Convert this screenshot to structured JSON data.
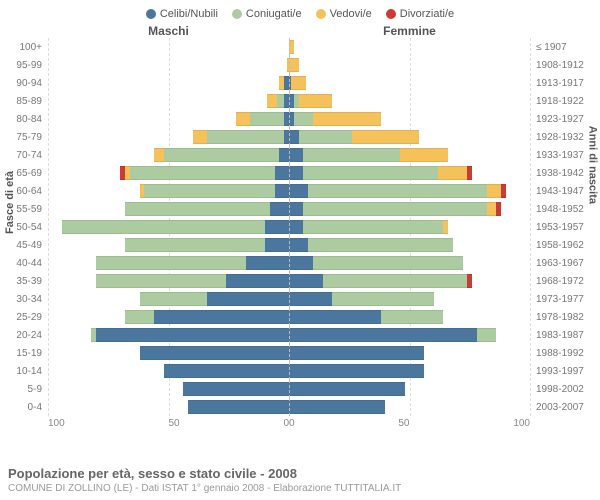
{
  "legend": [
    {
      "label": "Celibi/Nubili",
      "color": "#4b779f"
    },
    {
      "label": "Coniugati/e",
      "color": "#accba0"
    },
    {
      "label": "Vedovi/e",
      "color": "#f5c15b"
    },
    {
      "label": "Divorziati/e",
      "color": "#cc3b33"
    }
  ],
  "headers": {
    "male": "Maschi",
    "female": "Femmine"
  },
  "axis_titles": {
    "left": "Fasce di età",
    "right": "Anni di nascita"
  },
  "x_axis": {
    "max": 100,
    "ticks_left": [
      "100",
      "50",
      "0"
    ],
    "ticks_right": [
      "0",
      "50",
      "100"
    ]
  },
  "caption": {
    "title": "Popolazione per età, sesso e stato civile - 2008",
    "subtitle": "COMUNE DI ZOLLINO (LE) - Dati ISTAT 1° gennaio 2008 - Elaborazione TUTTITALIA.IT"
  },
  "colors": {
    "nubili": "#4b779f",
    "coniugati": "#accba0",
    "vedovi": "#f5c15b",
    "divorziati": "#cc3b33",
    "grid": "#dddddd",
    "centerline": "#bbbbbb",
    "bg": "#ffffff"
  },
  "rows": [
    {
      "age": "100+",
      "year": "≤ 1907",
      "m": {
        "n": 0,
        "c": 0,
        "v": 0,
        "d": 0
      },
      "f": {
        "n": 0,
        "c": 0,
        "v": 2,
        "d": 0
      }
    },
    {
      "age": "95-99",
      "year": "1908-1912",
      "m": {
        "n": 0,
        "c": 0,
        "v": 1,
        "d": 0
      },
      "f": {
        "n": 0,
        "c": 0,
        "v": 4,
        "d": 0
      }
    },
    {
      "age": "90-94",
      "year": "1913-1917",
      "m": {
        "n": 2,
        "c": 0,
        "v": 2,
        "d": 0
      },
      "f": {
        "n": 1,
        "c": 0,
        "v": 6,
        "d": 0
      }
    },
    {
      "age": "85-89",
      "year": "1918-1922",
      "m": {
        "n": 2,
        "c": 3,
        "v": 4,
        "d": 0
      },
      "f": {
        "n": 2,
        "c": 2,
        "v": 14,
        "d": 0
      }
    },
    {
      "age": "80-84",
      "year": "1923-1927",
      "m": {
        "n": 2,
        "c": 14,
        "v": 6,
        "d": 0
      },
      "f": {
        "n": 2,
        "c": 8,
        "v": 28,
        "d": 0
      }
    },
    {
      "age": "75-79",
      "year": "1928-1932",
      "m": {
        "n": 2,
        "c": 32,
        "v": 6,
        "d": 0
      },
      "f": {
        "n": 4,
        "c": 22,
        "v": 28,
        "d": 0
      }
    },
    {
      "age": "70-74",
      "year": "1933-1937",
      "m": {
        "n": 4,
        "c": 48,
        "v": 4,
        "d": 0
      },
      "f": {
        "n": 6,
        "c": 40,
        "v": 20,
        "d": 0
      }
    },
    {
      "age": "65-69",
      "year": "1938-1942",
      "m": {
        "n": 6,
        "c": 60,
        "v": 2,
        "d": 2
      },
      "f": {
        "n": 6,
        "c": 56,
        "v": 12,
        "d": 2
      }
    },
    {
      "age": "60-64",
      "year": "1943-1947",
      "m": {
        "n": 6,
        "c": 54,
        "v": 2,
        "d": 0
      },
      "f": {
        "n": 8,
        "c": 74,
        "v": 6,
        "d": 2
      }
    },
    {
      "age": "55-59",
      "year": "1948-1952",
      "m": {
        "n": 8,
        "c": 60,
        "v": 0,
        "d": 0
      },
      "f": {
        "n": 6,
        "c": 76,
        "v": 4,
        "d": 2
      }
    },
    {
      "age": "50-54",
      "year": "1953-1957",
      "m": {
        "n": 10,
        "c": 84,
        "v": 0,
        "d": 0
      },
      "f": {
        "n": 6,
        "c": 58,
        "v": 2,
        "d": 0
      }
    },
    {
      "age": "45-49",
      "year": "1958-1962",
      "m": {
        "n": 10,
        "c": 58,
        "v": 0,
        "d": 0
      },
      "f": {
        "n": 8,
        "c": 60,
        "v": 0,
        "d": 0
      }
    },
    {
      "age": "40-44",
      "year": "1963-1967",
      "m": {
        "n": 18,
        "c": 62,
        "v": 0,
        "d": 0
      },
      "f": {
        "n": 10,
        "c": 62,
        "v": 0,
        "d": 0
      }
    },
    {
      "age": "35-39",
      "year": "1968-1972",
      "m": {
        "n": 26,
        "c": 54,
        "v": 0,
        "d": 0
      },
      "f": {
        "n": 14,
        "c": 60,
        "v": 0,
        "d": 2
      }
    },
    {
      "age": "30-34",
      "year": "1973-1977",
      "m": {
        "n": 34,
        "c": 28,
        "v": 0,
        "d": 0
      },
      "f": {
        "n": 18,
        "c": 42,
        "v": 0,
        "d": 0
      }
    },
    {
      "age": "25-29",
      "year": "1978-1982",
      "m": {
        "n": 56,
        "c": 12,
        "v": 0,
        "d": 0
      },
      "f": {
        "n": 38,
        "c": 26,
        "v": 0,
        "d": 0
      }
    },
    {
      "age": "20-24",
      "year": "1983-1987",
      "m": {
        "n": 80,
        "c": 2,
        "v": 0,
        "d": 0
      },
      "f": {
        "n": 78,
        "c": 8,
        "v": 0,
        "d": 0
      }
    },
    {
      "age": "15-19",
      "year": "1988-1992",
      "m": {
        "n": 62,
        "c": 0,
        "v": 0,
        "d": 0
      },
      "f": {
        "n": 56,
        "c": 0,
        "v": 0,
        "d": 0
      }
    },
    {
      "age": "10-14",
      "year": "1993-1997",
      "m": {
        "n": 52,
        "c": 0,
        "v": 0,
        "d": 0
      },
      "f": {
        "n": 56,
        "c": 0,
        "v": 0,
        "d": 0
      }
    },
    {
      "age": "5-9",
      "year": "1998-2002",
      "m": {
        "n": 44,
        "c": 0,
        "v": 0,
        "d": 0
      },
      "f": {
        "n": 48,
        "c": 0,
        "v": 0,
        "d": 0
      }
    },
    {
      "age": "0-4",
      "year": "2003-2007",
      "m": {
        "n": 42,
        "c": 0,
        "v": 0,
        "d": 0
      },
      "f": {
        "n": 40,
        "c": 0,
        "v": 0,
        "d": 0
      }
    }
  ]
}
